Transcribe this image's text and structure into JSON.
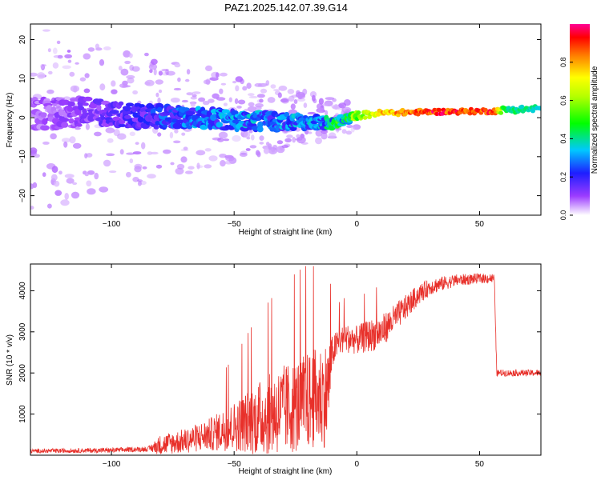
{
  "title": "PAZ1.2025.142.07.39.G14",
  "colors": {
    "snr_line": "#e8302a",
    "frame": "#000000"
  },
  "chart_data": [
    {
      "type": "heatmap",
      "xlabel": "Height of straight line (km)",
      "ylabel": "Frequency (Hz)",
      "xlim": [
        -133,
        75
      ],
      "ylim": [
        -25,
        24
      ],
      "xticks": [
        -100,
        -50,
        0,
        50
      ],
      "yticks": [
        -20,
        -10,
        0,
        10,
        20
      ],
      "colorbar": {
        "label": "Normalized spectral amplitude",
        "range": [
          0,
          1
        ],
        "ticks": [
          0.0,
          0.2,
          0.4,
          0.6,
          0.8
        ]
      },
      "ridge": [
        {
          "x": -130,
          "f": 1.0,
          "amp": 0.08,
          "spread": 4.0
        },
        {
          "x": -110,
          "f": 1.5,
          "amp": 0.12,
          "spread": 3.5
        },
        {
          "x": -90,
          "f": 0.5,
          "amp": 0.18,
          "spread": 3.0
        },
        {
          "x": -70,
          "f": 0.0,
          "amp": 0.28,
          "spread": 2.5
        },
        {
          "x": -50,
          "f": -0.5,
          "amp": 0.3,
          "spread": 2.5
        },
        {
          "x": -30,
          "f": -1.0,
          "amp": 0.3,
          "spread": 2.0
        },
        {
          "x": -15,
          "f": -1.2,
          "amp": 0.32,
          "spread": 1.5
        },
        {
          "x": -10,
          "f": -1.5,
          "amp": 0.4,
          "spread": 1.2
        },
        {
          "x": 0,
          "f": 0.5,
          "amp": 0.55,
          "spread": 0.9
        },
        {
          "x": 10,
          "f": 1.2,
          "amp": 0.8,
          "spread": 0.7
        },
        {
          "x": 30,
          "f": 1.5,
          "amp": 0.95,
          "spread": 0.6
        },
        {
          "x": 56,
          "f": 1.7,
          "amp": 0.92,
          "spread": 0.6
        },
        {
          "x": 60,
          "f": 2.0,
          "amp": 0.45,
          "spread": 0.8
        },
        {
          "x": 75,
          "f": 2.3,
          "amp": 0.4,
          "spread": 0.9
        }
      ]
    },
    {
      "type": "line",
      "xlabel": "Height of straight line (km)",
      "ylabel": "SNR (10 * v/v)",
      "xlim": [
        -133,
        75
      ],
      "ylim": [
        0,
        4650
      ],
      "xticks": [
        -100,
        -50,
        0,
        50
      ],
      "yticks": [
        1000,
        2000,
        3000,
        4000
      ],
      "series": [
        {
          "x": [
            -133,
            -100,
            -85,
            -80,
            -70,
            -60,
            -50,
            -40,
            -30,
            -20,
            -12,
            -10,
            -8,
            -5,
            0,
            5,
            10,
            15,
            20,
            25,
            30,
            40,
            50,
            56,
            57,
            60,
            70,
            75
          ],
          "y_mean": [
            100,
            120,
            150,
            250,
            350,
            500,
            700,
            900,
            1100,
            1300,
            1500,
            2500,
            2700,
            2850,
            2800,
            2900,
            3000,
            3300,
            3600,
            3900,
            4100,
            4250,
            4300,
            4300,
            2000,
            2000,
            2000,
            2000
          ],
          "y_spread": [
            50,
            60,
            60,
            250,
            300,
            400,
            600,
            900,
            1100,
            1200,
            1300,
            400,
            350,
            350,
            350,
            400,
            400,
            350,
            300,
            250,
            200,
            150,
            120,
            120,
            80,
            80,
            80,
            80
          ]
        }
      ]
    }
  ]
}
